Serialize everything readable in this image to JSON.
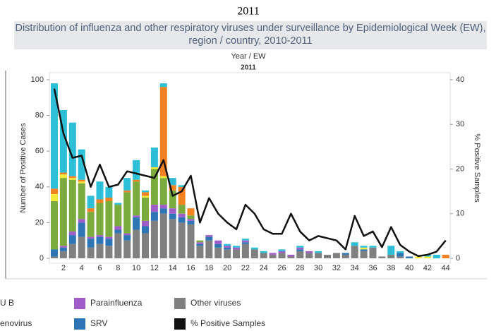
{
  "chart_data": {
    "type": "bar",
    "page_title": "2011",
    "title": "Distribution of influenza and other respiratory viruses under surveillance by Epidemiological Week (EW), region / country, 2010-2011",
    "header": "Year / EW",
    "subheader": "2011",
    "ylabel": "Number of Positive Cases",
    "y2label": "% Positive Samples",
    "categories": [
      null,
      "2",
      null,
      "4",
      null,
      "6",
      null,
      "8",
      null,
      "10",
      null,
      "12",
      null,
      "14",
      null,
      "16",
      null,
      "18",
      null,
      "20",
      null,
      "22",
      null,
      "24",
      null,
      "26",
      null,
      "28",
      null,
      "30",
      null,
      "32",
      null,
      "34",
      null,
      "36",
      null,
      "38",
      null,
      "40",
      null,
      "42",
      null,
      "44"
    ],
    "ylim": [
      0,
      100
    ],
    "yticks": [
      0,
      20,
      40,
      60,
      80,
      100
    ],
    "y2lim": [
      0,
      40
    ],
    "y2ticks": [
      0,
      10,
      20,
      30,
      40
    ],
    "stacked": true,
    "series": [
      {
        "name": "Other viruses",
        "color": "#808080",
        "values": [
          1,
          4,
          8,
          12,
          6,
          8,
          7,
          14,
          10,
          16,
          14,
          21,
          25,
          22,
          20,
          19,
          7,
          10,
          6,
          5,
          5,
          8,
          5,
          3,
          2,
          3,
          1,
          4,
          3,
          3,
          2,
          3,
          2,
          7,
          4,
          6,
          1,
          2,
          1,
          0,
          0,
          0,
          0,
          0
        ]
      },
      {
        "name": "SRV",
        "color": "#2e75b6",
        "values": [
          4,
          2,
          5,
          8,
          5,
          4,
          4,
          2,
          3,
          7,
          4,
          5,
          3,
          3,
          3,
          2,
          1,
          2,
          2,
          1,
          0,
          1,
          0,
          0,
          0,
          0,
          0,
          1,
          0,
          0,
          0,
          0,
          1,
          0,
          1,
          0,
          0,
          0,
          2,
          1,
          0,
          0,
          0,
          0
        ]
      },
      {
        "name": "Parainfluenza",
        "color": "#a05cc8",
        "values": [
          0,
          1,
          2,
          2,
          1,
          1,
          1,
          2,
          1,
          1,
          3,
          4,
          2,
          3,
          2,
          1,
          1,
          1,
          2,
          1,
          1,
          1,
          0,
          0,
          1,
          1,
          1,
          1,
          1,
          0,
          0,
          0,
          0,
          0,
          0,
          0,
          0,
          0,
          0,
          0,
          0,
          0,
          0,
          0
        ]
      },
      {
        "name": "U B",
        "color": "#7aab3c",
        "values": [
          27,
          38,
          29,
          20,
          14,
          18,
          20,
          12,
          23,
          19,
          13,
          20,
          15,
          10,
          5,
          2,
          1,
          0,
          0,
          0,
          0,
          0,
          0,
          0,
          0,
          0,
          0,
          0,
          0,
          0,
          0,
          0,
          0,
          0,
          0,
          0,
          0,
          0,
          0,
          0,
          0,
          0,
          0,
          0
        ]
      },
      {
        "name": "enovirus",
        "color": "#f5ea3a",
        "values": [
          4,
          2,
          1,
          1,
          0,
          0,
          0,
          0,
          0,
          0,
          1,
          1,
          1,
          0,
          0,
          0,
          0,
          0,
          0,
          0,
          0,
          0,
          0,
          0,
          0,
          0,
          0,
          0,
          0,
          0,
          0,
          0,
          0,
          0,
          1,
          0,
          0,
          0,
          0,
          0,
          1,
          1,
          0,
          0
        ]
      },
      {
        "color": "#f58220",
        "values": [
          3,
          1,
          1,
          1,
          2,
          2,
          2,
          0,
          1,
          1,
          2,
          0,
          50,
          3,
          10,
          4,
          0,
          0,
          0,
          0,
          0,
          0,
          0,
          0,
          0,
          0,
          0,
          0,
          0,
          0,
          0,
          0,
          0,
          0,
          0,
          0,
          0,
          0,
          0,
          0,
          0,
          0,
          0,
          2
        ]
      },
      {
        "color": "#2ebfd8",
        "values": [
          59,
          35,
          30,
          17,
          7,
          10,
          6,
          1,
          7,
          11,
          1,
          11,
          2,
          4,
          1,
          0,
          0,
          0,
          0,
          1,
          1,
          1,
          1,
          1,
          0,
          1,
          0,
          1,
          0,
          1,
          0,
          0,
          0,
          2,
          1,
          1,
          0,
          5,
          1,
          0,
          0,
          1,
          2,
          0
        ]
      },
      {
        "name": "% Positive Samples",
        "type": "line",
        "axis": "y2",
        "color": "#111111",
        "values": [
          38,
          28,
          22.5,
          23,
          16,
          21,
          16,
          16.5,
          19.5,
          19,
          18.5,
          18,
          22,
          14,
          15,
          18.5,
          8,
          13.5,
          10,
          8,
          6.5,
          12,
          10,
          6.5,
          5.5,
          5.5,
          10,
          6,
          4,
          5,
          4.5,
          4,
          2,
          9.5,
          5,
          6,
          2.5,
          7,
          3,
          1.5,
          0.5,
          0.8,
          1.5,
          4
        ]
      }
    ]
  }
}
